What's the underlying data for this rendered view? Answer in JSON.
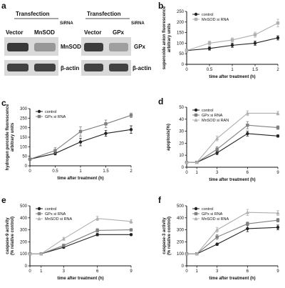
{
  "colors": {
    "control": "#222222",
    "gpx": "#808080",
    "mnsod": "#b0b0b0",
    "axis": "#111111",
    "blot_bg": "#d9d9d9"
  },
  "panel_a": {
    "label": "a",
    "left": {
      "header": "Transfection",
      "sirna": "SiRNA",
      "lanes": [
        "Vector",
        "MnSOD"
      ],
      "rows": [
        {
          "label": "MnSOD",
          "intensity": [
            0.9,
            0.35
          ]
        },
        {
          "label": "β-actin",
          "intensity": [
            0.85,
            0.85
          ]
        }
      ]
    },
    "right": {
      "header": "Transfection",
      "sirna": "SiRNA",
      "lanes": [
        "Vector",
        "GPx"
      ],
      "rows": [
        {
          "label": "GPx",
          "intensity": [
            0.88,
            0.3
          ]
        },
        {
          "label": "β-actin",
          "intensity": [
            0.85,
            0.85
          ]
        }
      ]
    }
  },
  "chart_data": [
    {
      "panel": "b",
      "type": "line",
      "xlabel": "time after treatment (h)",
      "ylabel": "superoxide anion fluorescence arbitrary units",
      "ylabel_lines": [
        "superoxide anion fluorescence",
        "arbitrary units"
      ],
      "x": [
        0,
        0.5,
        1,
        1.5,
        2
      ],
      "xticks": [
        "0",
        "0.5",
        "1",
        "1.5",
        "2"
      ],
      "xlim": [
        0,
        2
      ],
      "ylim": [
        0,
        250
      ],
      "yticks": [
        0,
        50,
        100,
        150,
        200,
        250
      ],
      "legend": "top-left",
      "series": [
        {
          "name": "control",
          "key": "control",
          "marker": "circle",
          "values": [
            65,
            75,
            90,
            100,
            125
          ],
          "err": [
            8,
            8,
            10,
            10,
            10
          ]
        },
        {
          "name": "MnSOD si RNA",
          "key": "mnsod",
          "marker": "square",
          "values": [
            65,
            100,
            115,
            140,
            195
          ],
          "err": [
            8,
            10,
            10,
            12,
            18
          ]
        }
      ]
    },
    {
      "panel": "c",
      "type": "line",
      "xlabel": "time after treatment (h)",
      "ylabel": "hydrogen peroxide fluorescence arbitrary units",
      "ylabel_lines": [
        "hydrogen peroxide fluorescence",
        "arbitrary units"
      ],
      "x": [
        0,
        0.5,
        1,
        1.5,
        2
      ],
      "xticks": [
        "0",
        "0.5",
        "1",
        "1.5",
        "2"
      ],
      "xlim": [
        0,
        2
      ],
      "ylim": [
        0,
        300
      ],
      "yticks": [
        0,
        50,
        100,
        150,
        200,
        250,
        300
      ],
      "legend": "top-left",
      "series": [
        {
          "name": "control",
          "key": "control",
          "marker": "circle",
          "values": [
            35,
            65,
            125,
            170,
            190
          ],
          "err": [
            3,
            8,
            20,
            15,
            20
          ]
        },
        {
          "name": "GPx si RNA",
          "key": "gpx",
          "marker": "square",
          "values": [
            35,
            80,
            180,
            220,
            265
          ],
          "err": [
            3,
            15,
            25,
            20,
            12
          ]
        }
      ]
    },
    {
      "panel": "d",
      "type": "line",
      "xlabel": "time after treatment (h)",
      "ylabel": "apoptosis(%)",
      "ylabel_lines": [
        "apoptosis(%)"
      ],
      "x": [
        0,
        1,
        3,
        6,
        9
      ],
      "xticks": [
        "0",
        "1",
        "3",
        "6",
        "9"
      ],
      "xlim": [
        0,
        9
      ],
      "ylim": [
        0,
        50
      ],
      "yticks": [
        0,
        10,
        20,
        30,
        40,
        50
      ],
      "legend": "top-left",
      "series": [
        {
          "name": "control",
          "key": "control",
          "marker": "circle",
          "values": [
            4,
            4,
            12,
            28,
            26
          ],
          "err": [
            0.5,
            0.5,
            1.5,
            2,
            1
          ]
        },
        {
          "name": "GPx si RNA",
          "key": "gpx",
          "marker": "square",
          "values": [
            4,
            4,
            15,
            35,
            33
          ],
          "err": [
            0.5,
            0.5,
            2,
            3,
            1.5
          ]
        },
        {
          "name": "MnSOD si RAN",
          "key": "mnsod",
          "marker": "triangle",
          "values": [
            4,
            4,
            24,
            45,
            45
          ],
          "err": [
            0.5,
            0.5,
            2,
            2,
            1.5
          ]
        }
      ]
    },
    {
      "panel": "e",
      "type": "line",
      "xlabel": "time after treatment (h)",
      "ylabel": "caspase-9 activity (% relative control)",
      "ylabel_lines": [
        "caspase-9 activity",
        "(% relative control)"
      ],
      "x": [
        0,
        1,
        3,
        6,
        9
      ],
      "xticks": [
        "0",
        "1",
        "3",
        "6",
        "9"
      ],
      "xlim": [
        0,
        9
      ],
      "ylim": [
        0,
        500
      ],
      "yticks": [
        0,
        100,
        200,
        300,
        400,
        500
      ],
      "legend": "top-left",
      "series": [
        {
          "name": "control",
          "key": "control",
          "marker": "circle",
          "values": [
            100,
            100,
            155,
            260,
            260
          ],
          "err": [
            3,
            3,
            8,
            10,
            8
          ]
        },
        {
          "name": "GPx si RNA",
          "key": "gpx",
          "marker": "square",
          "values": [
            100,
            100,
            170,
            295,
            300
          ],
          "err": [
            3,
            3,
            10,
            15,
            10
          ]
        },
        {
          "name": "MnSOD si RNA",
          "key": "mnsod",
          "marker": "triangle",
          "values": [
            100,
            100,
            225,
            395,
            370
          ],
          "err": [
            3,
            3,
            12,
            18,
            15
          ]
        }
      ]
    },
    {
      "panel": "f",
      "type": "line",
      "xlabel": "time after treatment (h)",
      "ylabel": "caspase-3 activity (% relative control)",
      "ylabel_lines": [
        "caspase-3 activity",
        "(% relative control)"
      ],
      "x": [
        0,
        1,
        3,
        6,
        9
      ],
      "xticks": [
        "0",
        "1",
        "3",
        "6",
        "9"
      ],
      "xlim": [
        0,
        9
      ],
      "ylim": [
        0,
        500
      ],
      "yticks": [
        0,
        100,
        200,
        300,
        400,
        500
      ],
      "legend": "top-left",
      "series": [
        {
          "name": "control",
          "key": "control",
          "marker": "circle",
          "values": [
            100,
            100,
            180,
            310,
            320
          ],
          "err": [
            3,
            3,
            10,
            25,
            20
          ]
        },
        {
          "name": "GPx si RNA",
          "key": "gpx",
          "marker": "square",
          "values": [
            100,
            100,
            240,
            350,
            380
          ],
          "err": [
            3,
            3,
            20,
            15,
            15
          ]
        },
        {
          "name": "MnSOD si RNA",
          "key": "mnsod",
          "marker": "triangle",
          "values": [
            100,
            100,
            300,
            445,
            440
          ],
          "err": [
            3,
            3,
            20,
            25,
            20
          ]
        }
      ]
    }
  ]
}
